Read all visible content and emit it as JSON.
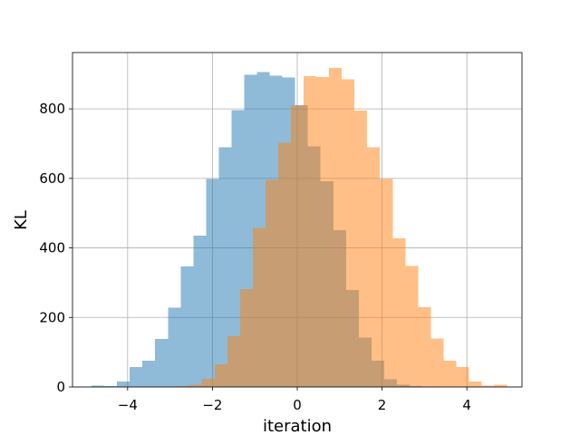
{
  "chart_data": {
    "type": "histogram",
    "title": "",
    "xlabel": "iteration",
    "ylabel": "KL",
    "xlim": [
      -5.3,
      5.3
    ],
    "ylim": [
      0,
      962
    ],
    "x_ticks": [
      -4,
      -2,
      0,
      2,
      4
    ],
    "x_tick_labels": [
      "−4",
      "−2",
      "0",
      "2",
      "4"
    ],
    "y_ticks": [
      0,
      200,
      400,
      600,
      800
    ],
    "y_tick_labels": [
      "0",
      "200",
      "400",
      "600",
      "800"
    ],
    "grid": true,
    "legend": "none",
    "overlay_opacity": 0.5,
    "series": [
      {
        "color": "#1f77b4",
        "bin_edges": [
          -4.85,
          -4.55,
          -4.25,
          -3.95,
          -3.65,
          -3.35,
          -3.05,
          -2.75,
          -2.45,
          -2.15,
          -1.85,
          -1.55,
          -1.25,
          -0.95,
          -0.65,
          -0.35,
          -0.05,
          0.25,
          0.55,
          0.85,
          1.15,
          1.45,
          1.75,
          2.05,
          2.35,
          2.65,
          2.95,
          3.25
        ],
        "counts": [
          4,
          2,
          15,
          57,
          75,
          138,
          228,
          347,
          436,
          598,
          690,
          796,
          898,
          906,
          895,
          890,
          811,
          692,
          592,
          451,
          279,
          142,
          76,
          22,
          6,
          2,
          1
        ]
      },
      {
        "color": "#ff7f0e",
        "bin_edges": [
          -2.85,
          -2.55,
          -2.25,
          -1.95,
          -1.65,
          -1.35,
          -1.05,
          -0.75,
          -0.45,
          -0.15,
          0.15,
          0.45,
          0.75,
          1.05,
          1.35,
          1.65,
          1.95,
          2.25,
          2.55,
          2.85,
          3.15,
          3.45,
          3.75,
          4.05,
          4.35,
          4.65,
          4.95
        ],
        "counts": [
          2,
          6,
          24,
          65,
          146,
          281,
          457,
          596,
          703,
          810,
          894,
          891,
          918,
          885,
          795,
          690,
          598,
          428,
          348,
          230,
          139,
          75,
          57,
          15,
          4,
          7
        ]
      }
    ]
  }
}
